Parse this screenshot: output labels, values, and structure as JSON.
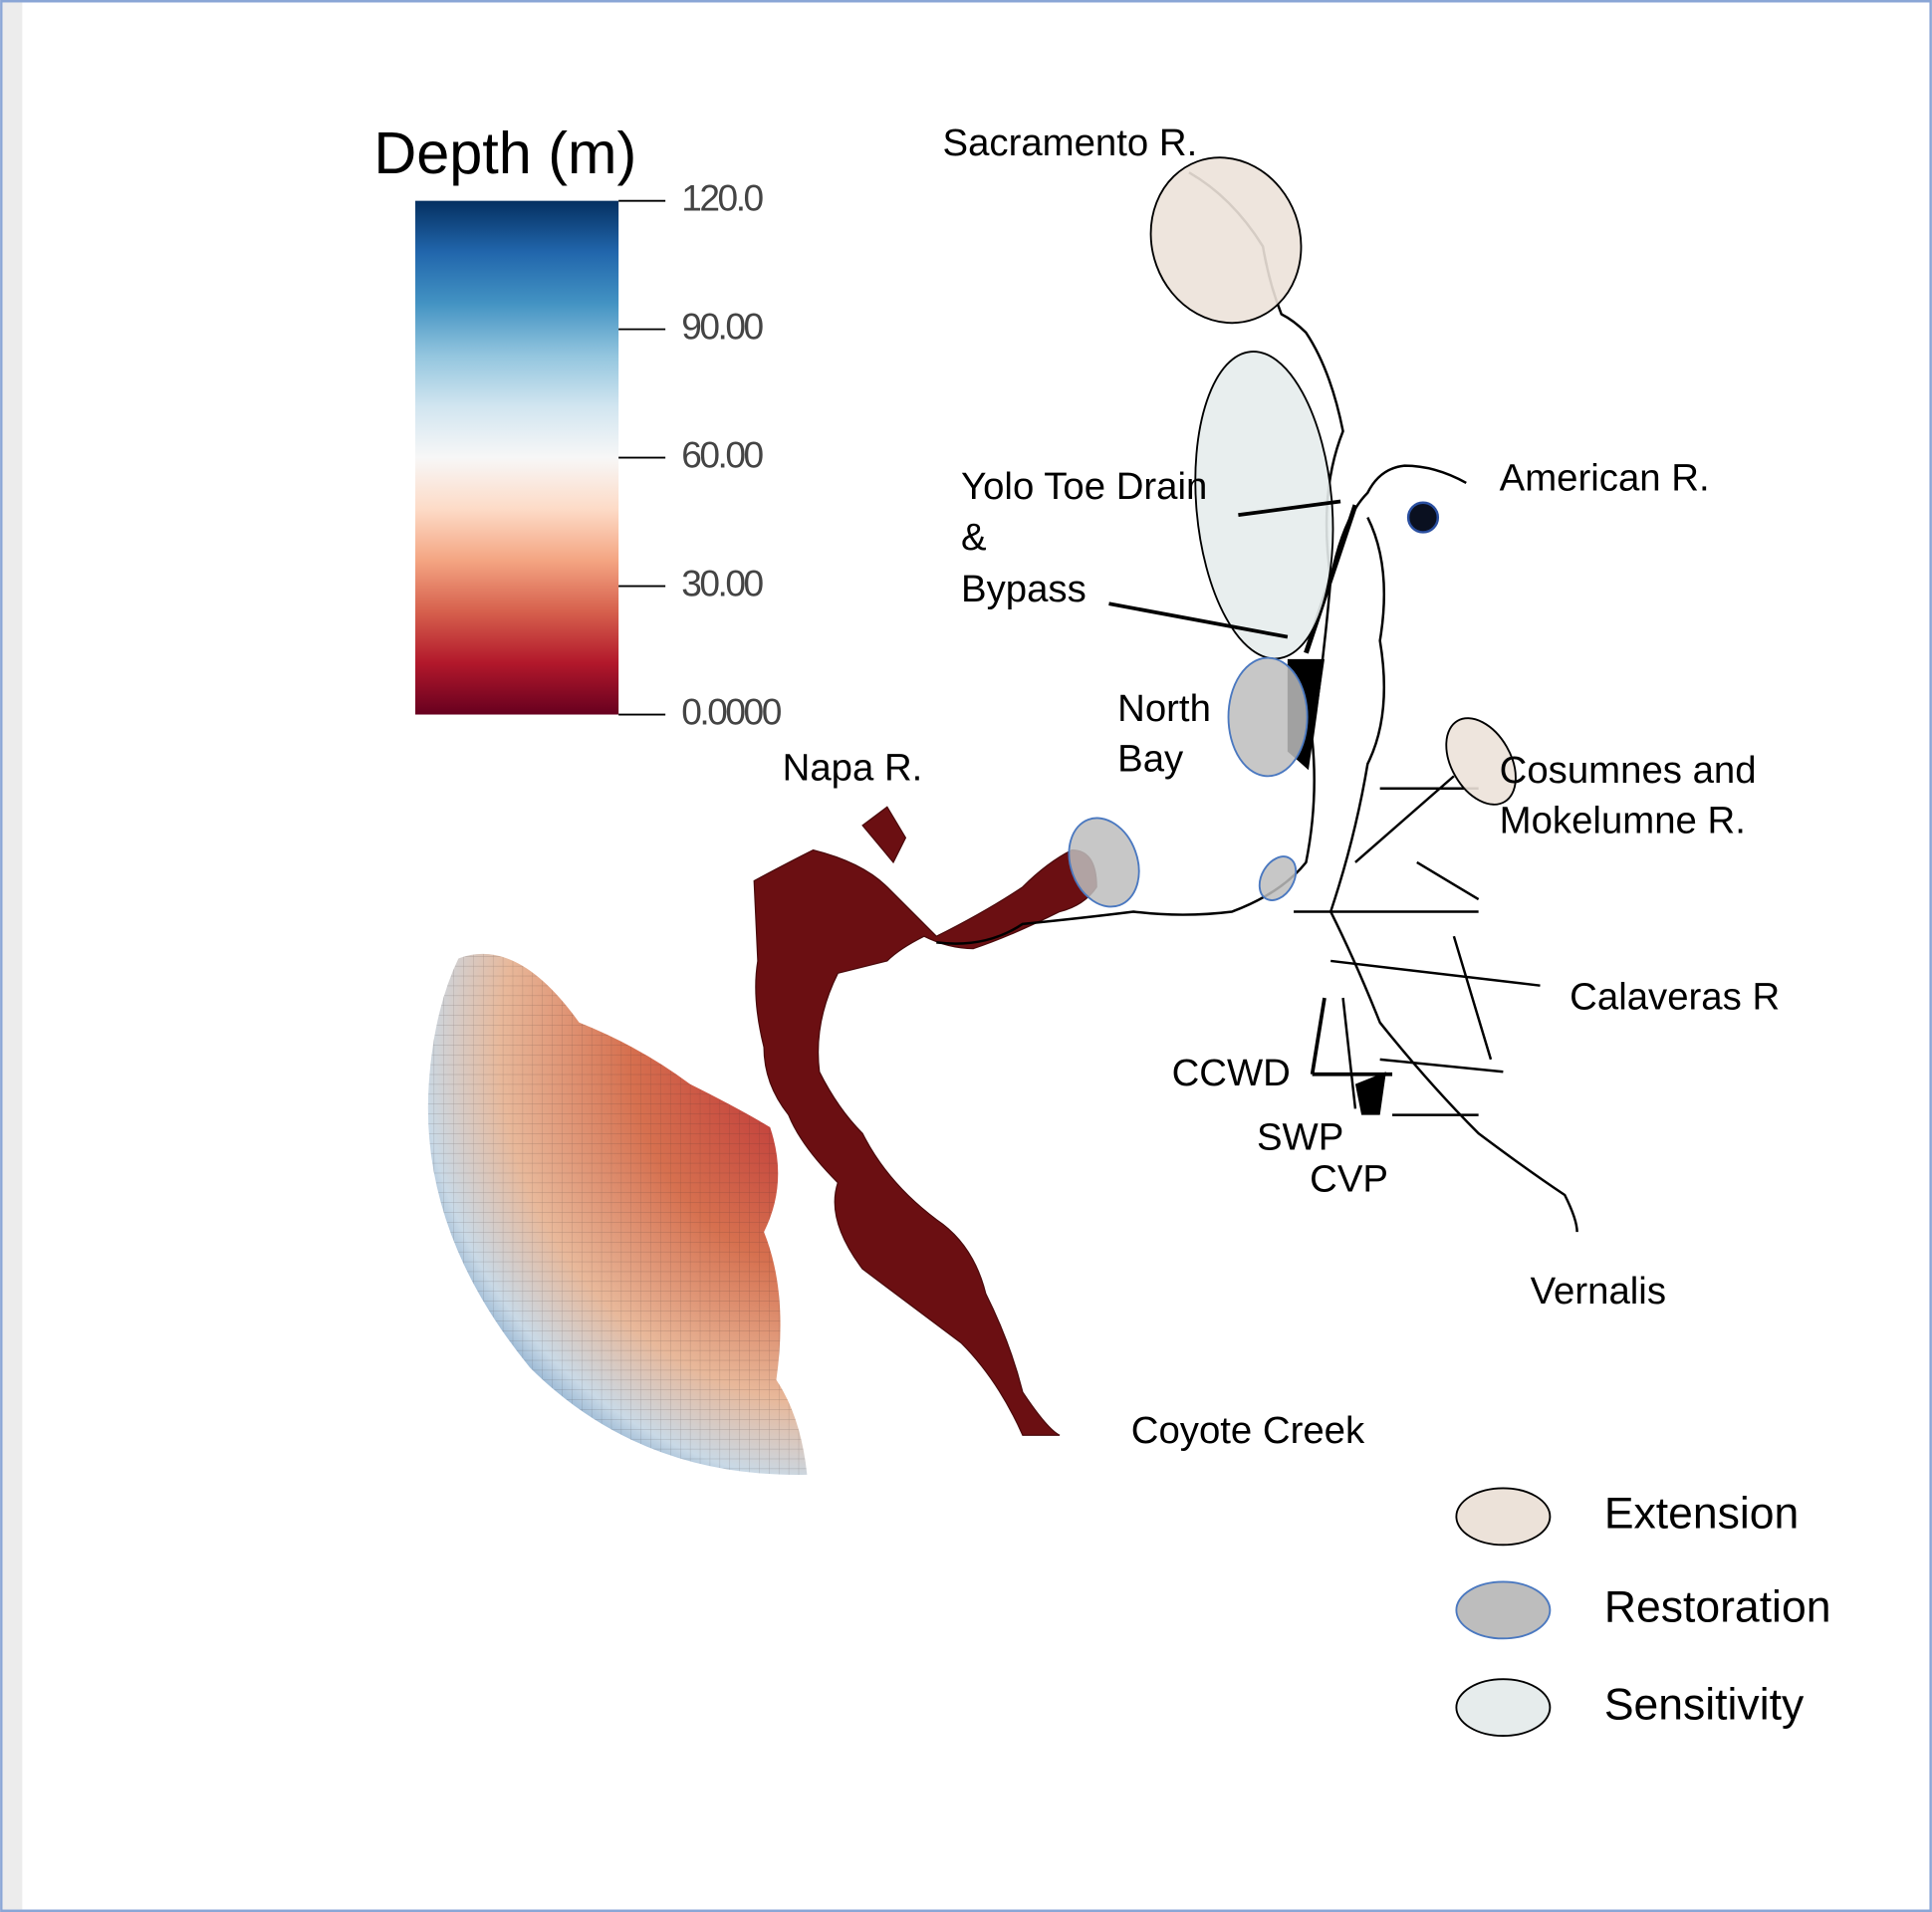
{
  "colorbar": {
    "title": "Depth (m)",
    "range": [
      0,
      120
    ],
    "ticks": [
      {
        "value": 120,
        "label": "120.0"
      },
      {
        "value": 90,
        "label": "90.00"
      },
      {
        "value": 60,
        "label": "60.00"
      },
      {
        "value": 30,
        "label": "30.00"
      },
      {
        "value": 0,
        "label": "0.0000"
      }
    ],
    "colors": [
      "#67001f",
      "#b2182b",
      "#d6604d",
      "#f4a582",
      "#fddbc7",
      "#f7f7f7",
      "#d1e5f0",
      "#92c5de",
      "#4393c3",
      "#2166ac",
      "#053061"
    ]
  },
  "labels": [
    "Sacramento R.",
    "American R.",
    "Yolo Toe Drain",
    "&",
    "Bypass",
    "North",
    "Bay",
    "Napa R.",
    "Cosumnes and",
    "Mokelumne R.",
    "Calaveras R",
    "CCWD",
    "SWP",
    "CVP",
    "Vernalis",
    "Coyote Creek"
  ],
  "legend": [
    {
      "name": "Extension",
      "color": "#ece2d9",
      "stroke": "#000"
    },
    {
      "name": "Restoration",
      "color": "#bdbdbd",
      "stroke": "#4a78c0"
    },
    {
      "name": "Sensitivity",
      "color": "#e6ecec",
      "stroke": "#000"
    }
  ]
}
